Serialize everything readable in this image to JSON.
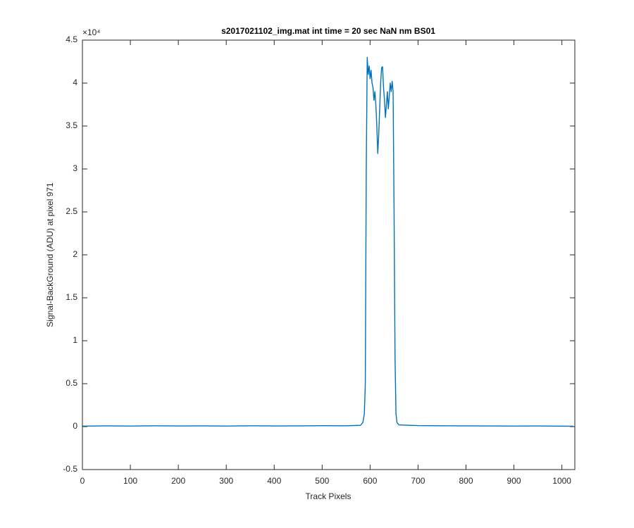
{
  "chart_data": {
    "type": "line",
    "title": "s2017021102_img.mat int time = 20 sec  NaN nm BS01",
    "xlabel": "Track Pixels",
    "ylabel": "Signal-BackGround (ADU) at pixel 971",
    "y_exponent_label": "×10⁴",
    "color": "#0072bd",
    "x": [
      0,
      50,
      100,
      150,
      200,
      250,
      300,
      350,
      400,
      450,
      500,
      550,
      580,
      585,
      588,
      590,
      592,
      594,
      596,
      598,
      600,
      602,
      604,
      606,
      608,
      610,
      612,
      614,
      616,
      618,
      620,
      622,
      624,
      626,
      628,
      630,
      632,
      634,
      636,
      638,
      640,
      642,
      644,
      646,
      648,
      650,
      652,
      654,
      656,
      660,
      700,
      750,
      800,
      850,
      900,
      950,
      1000,
      1024
    ],
    "values": [
      60,
      90,
      70,
      100,
      80,
      90,
      70,
      100,
      80,
      90,
      110,
      100,
      150,
      500,
      1500,
      5000,
      30000,
      43000,
      41000,
      42000,
      40500,
      41500,
      40000,
      39500,
      38000,
      39000,
      37500,
      35000,
      31800,
      34000,
      37000,
      40000,
      41800,
      41900,
      39500,
      38000,
      36000,
      37500,
      39000,
      37000,
      38500,
      40000,
      39000,
      40200,
      39000,
      25000,
      8000,
      1500,
      500,
      200,
      120,
      100,
      90,
      80,
      70,
      80,
      60,
      50
    ],
    "xlim": [
      0,
      1027
    ],
    "ylim": [
      -5000,
      45000
    ],
    "xticks": [
      0,
      100,
      200,
      300,
      400,
      500,
      600,
      700,
      800,
      900,
      1000
    ],
    "yticks": [
      {
        "value": -5000,
        "label": "-0.5"
      },
      {
        "value": 0,
        "label": "0"
      },
      {
        "value": 5000,
        "label": "0.5"
      },
      {
        "value": 10000,
        "label": "1"
      },
      {
        "value": 15000,
        "label": "1.5"
      },
      {
        "value": 20000,
        "label": "2"
      },
      {
        "value": 25000,
        "label": "2.5"
      },
      {
        "value": 30000,
        "label": "3"
      },
      {
        "value": 35000,
        "label": "3.5"
      },
      {
        "value": 40000,
        "label": "4"
      },
      {
        "value": 45000,
        "label": "4.5"
      }
    ],
    "grid": false
  }
}
